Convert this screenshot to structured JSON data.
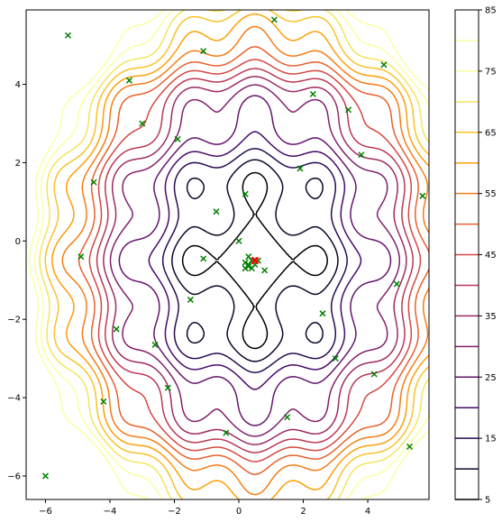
{
  "chart_data": {
    "type": "contour",
    "title": "",
    "xlabel": "",
    "ylabel": "",
    "xlim": [
      -6.6,
      5.9
    ],
    "ylim": [
      -6.6,
      5.9
    ],
    "x_ticks": [
      -6,
      -4,
      -2,
      0,
      2,
      4
    ],
    "y_ticks": [
      -6,
      -4,
      -2,
      0,
      2,
      4
    ],
    "x_tick_labels": [
      "−6",
      "−4",
      "−2",
      "0",
      "2",
      "4"
    ],
    "y_tick_labels": [
      "−6",
      "−4",
      "−2",
      "0",
      "2",
      "4"
    ],
    "grid": false,
    "colormap": "inferno",
    "colorbar": {
      "levels": [
        5,
        10,
        15,
        20,
        25,
        30,
        35,
        40,
        45,
        50,
        55,
        60,
        65,
        70,
        75,
        80,
        85
      ],
      "tick_values": [
        5,
        15,
        25,
        35,
        45,
        55,
        65,
        75,
        85
      ],
      "tick_labels": [
        "5",
        "15",
        "25",
        "35",
        "45",
        "55",
        "65",
        "75",
        "85"
      ],
      "colors": [
        "#000004",
        "#0d0829",
        "#280b53",
        "#470b6a",
        "#65156e",
        "#82206c",
        "#9f2a63",
        "#bb3754",
        "#d44842",
        "#e8602d",
        "#f57d15",
        "#fc9f07",
        "#fac228",
        "#f3e55d",
        "#fcffa4",
        "#fcffa4"
      ]
    },
    "contour_field": {
      "center": [
        0.5,
        -0.5
      ],
      "base_offset": 3,
      "radial_gain": 1.6,
      "ripple_amplitude": 3.2,
      "ripple_frequency": 3.0
    },
    "optimum": {
      "x": 0.5,
      "y": -0.5,
      "marker": "x",
      "color": "#ff0000"
    },
    "points": {
      "marker": "x",
      "color": "#008000",
      "x": [
        -5.3,
        -6.0,
        1.1,
        -1.1,
        4.5,
        -3.4,
        2.3,
        -3.0,
        3.4,
        -1.9,
        3.8,
        1.9,
        -4.5,
        -0.7,
        0.2,
        5.7,
        -4.9,
        -1.1,
        -1.5,
        4.9,
        0.0,
        0.3,
        0.4,
        0.2,
        0.3,
        0.5,
        0.4,
        0.8,
        0.3,
        0.6,
        0.2,
        2.6,
        -3.8,
        -2.6,
        3.0,
        4.2,
        -4.2,
        -2.2,
        1.5,
        -0.4,
        5.3
      ],
      "y": [
        5.25,
        -6.0,
        5.65,
        4.85,
        4.5,
        4.1,
        3.75,
        3.0,
        3.35,
        2.6,
        2.2,
        1.85,
        1.5,
        0.75,
        1.2,
        1.15,
        -0.4,
        -0.45,
        -1.5,
        -1.1,
        0.0,
        -0.4,
        -0.5,
        -0.55,
        -0.6,
        -0.6,
        -0.7,
        -0.75,
        -0.65,
        -0.5,
        -0.7,
        -1.85,
        -2.25,
        -2.65,
        -3.0,
        -3.4,
        -4.1,
        -3.75,
        -4.5,
        -4.9,
        -5.25
      ]
    }
  }
}
